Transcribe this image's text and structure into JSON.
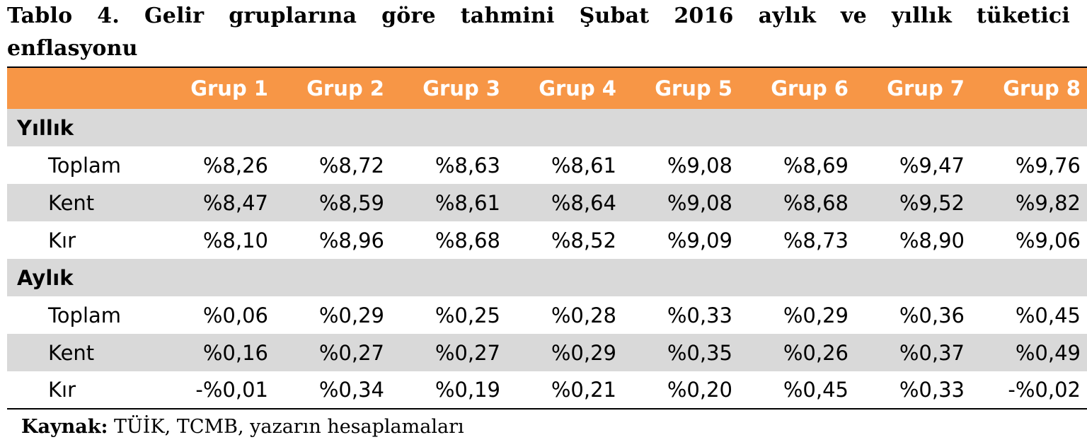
{
  "title": "Tablo 4. Gelir gruplarına göre tahmini Şubat 2016 aylık ve yıllık tüketici enflasyonu",
  "table": {
    "corner": "",
    "columns": [
      "Grup 1",
      "Grup 2",
      "Grup 3",
      "Grup 4",
      "Grup 5",
      "Grup 6",
      "Grup 7",
      "Grup 8"
    ],
    "sections": [
      {
        "label": "Yıllık",
        "rows": [
          {
            "label": "Toplam",
            "values": [
              "%8,26",
              "%8,72",
              "%8,63",
              "%8,61",
              "%9,08",
              "%8,69",
              "%9,47",
              "%9,76"
            ]
          },
          {
            "label": "Kent",
            "values": [
              "%8,47",
              "%8,59",
              "%8,61",
              "%8,64",
              "%9,08",
              "%8,68",
              "%9,52",
              "%9,82"
            ]
          },
          {
            "label": "Kır",
            "values": [
              "%8,10",
              "%8,96",
              "%8,68",
              "%8,52",
              "%9,09",
              "%8,73",
              "%8,90",
              "%9,06"
            ]
          }
        ]
      },
      {
        "label": "Aylık",
        "rows": [
          {
            "label": "Toplam",
            "values": [
              "%0,06",
              "%0,29",
              "%0,25",
              "%0,28",
              "%0,33",
              "%0,29",
              "%0,36",
              "%0,45"
            ]
          },
          {
            "label": "Kent",
            "values": [
              "%0,16",
              "%0,27",
              "%0,27",
              "%0,29",
              "%0,35",
              "%0,26",
              "%0,37",
              "%0,49"
            ]
          },
          {
            "label": "Kır",
            "values": [
              "-%0,01",
              "%0,34",
              "%0,19",
              "%0,21",
              "%0,20",
              "%0,45",
              "%0,33",
              "-%0,02"
            ]
          }
        ]
      }
    ]
  },
  "source": {
    "label": "Kaynak:",
    "text": "TÜİK, TCMB, yazarın hesaplamaları"
  },
  "colors": {
    "header_bg": "#f79646",
    "header_text": "#ffffff",
    "shade_row": "#d9d9d9",
    "rule": "#000000"
  }
}
